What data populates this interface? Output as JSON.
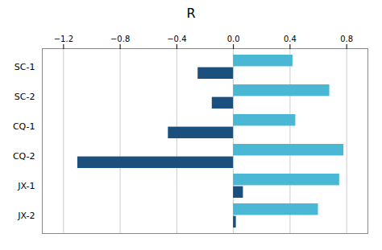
{
  "chart_data": {
    "type": "bar",
    "orientation": "horizontal",
    "title": "R",
    "categories": [
      "SC-1",
      "SC-2",
      "CQ-1",
      "CQ-2",
      "JX-1",
      "JX-2"
    ],
    "series": [
      {
        "color": "#4ab8d4",
        "values": [
          0.42,
          0.68,
          0.44,
          0.78,
          0.75,
          0.6
        ]
      },
      {
        "color": "#1b4f7e",
        "values": [
          -0.25,
          -0.15,
          -0.46,
          -1.1,
          0.07,
          0.02
        ]
      }
    ],
    "xlim": [
      -1.35,
      0.95
    ],
    "xticks": [
      -1.2,
      -0.8,
      -0.4,
      {
        "value": 0,
        "label": "0.0"
      },
      0.4,
      0.8
    ],
    "grid": true
  }
}
